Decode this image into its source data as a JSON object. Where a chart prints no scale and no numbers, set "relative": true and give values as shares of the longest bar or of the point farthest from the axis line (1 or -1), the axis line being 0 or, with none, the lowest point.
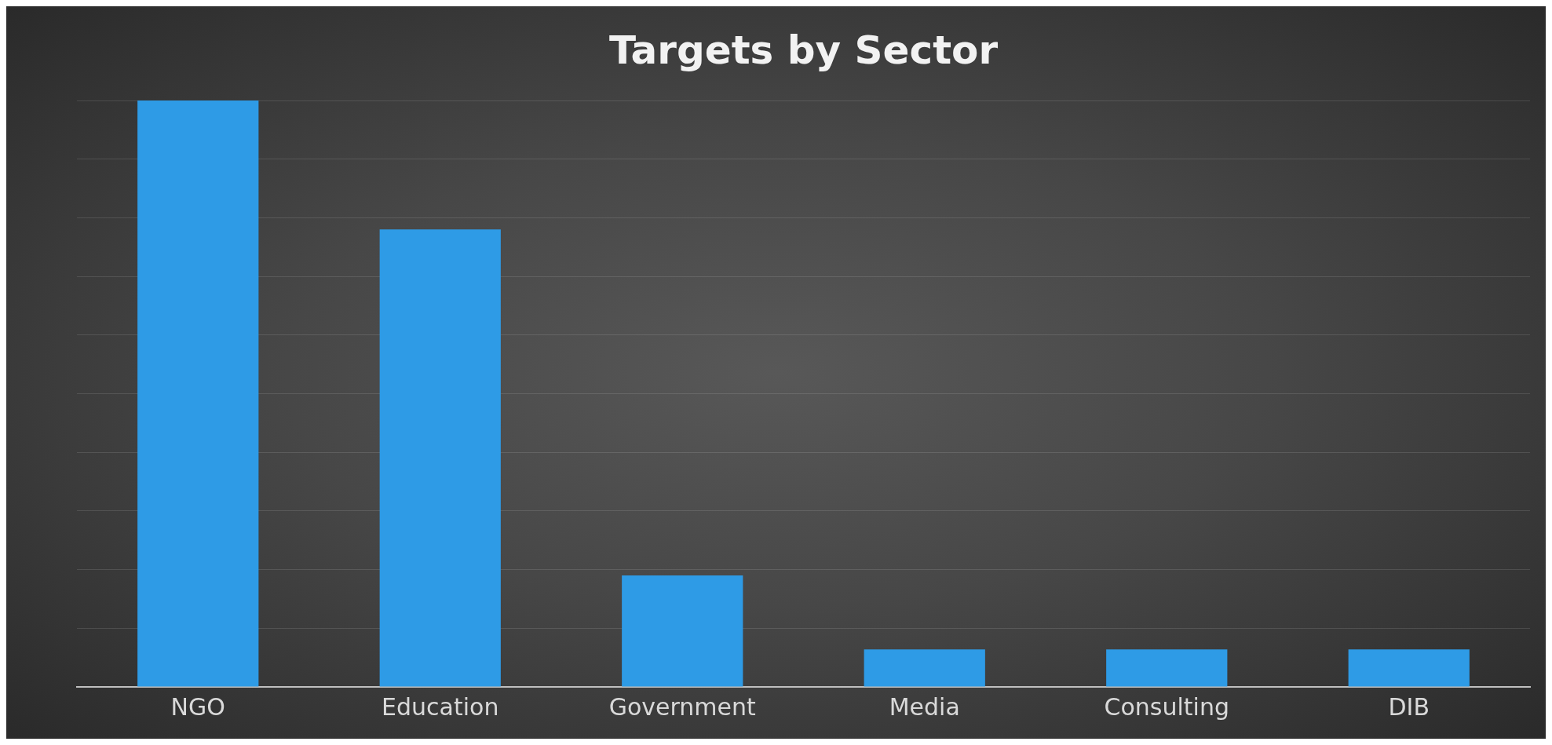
{
  "chart_data": {
    "type": "bar",
    "title": "Targets by Sector",
    "categories": [
      "NGO",
      "Education",
      "Government",
      "Media",
      "Consulting",
      "DIB"
    ],
    "values": [
      1,
      0.78,
      0.19,
      0.064,
      0.064,
      0.064
    ],
    "color": "#2e9be6",
    "relative": true,
    "grid": "y",
    "legend": false
  }
}
